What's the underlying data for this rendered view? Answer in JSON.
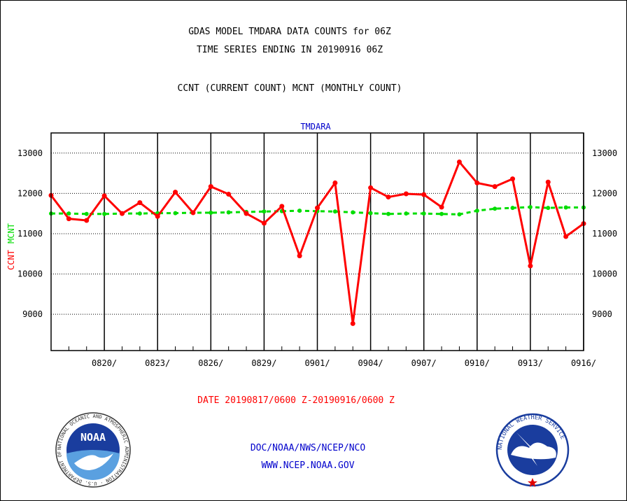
{
  "header": {
    "title_line1": "GDAS MODEL TMDARA DATA COUNTS for 06Z",
    "title_line2": "TIME SERIES ENDING IN 20190916 06Z",
    "subtitle": "CCNT (CURRENT COUNT) MCNT (MONTHLY COUNT)"
  },
  "footer": {
    "date_range": "DATE 20190817/0600 Z-20190916/0600 Z",
    "org": "DOC/NOAA/NWS/NCEP/NCO",
    "url": "WWW.NCEP.NOAA.GOV",
    "noaa_logo_label": "NOAA",
    "noaa_seal_text": "NATIONAL OCEANIC AND ATMOSPHERIC ADMINISTRATION · U.S. DEPARTMENT OF COMMERCE",
    "nws_seal_text": "NATIONAL WEATHER SERVICE"
  },
  "colors": {
    "ccnt": "#ff0000",
    "mcnt": "#00dd00",
    "plot_title": "#0000cc",
    "footer_blue": "#0000cc",
    "date_red": "#ff0000"
  },
  "chart_data": {
    "type": "line",
    "plot_title": "TMDARA",
    "ylabel_ccnt": "CCNT",
    "ylabel_mcnt": "MCNT",
    "x": [
      "0817",
      "0818",
      "0819",
      "0820",
      "0821",
      "0822",
      "0823",
      "0824",
      "0825",
      "0826",
      "0827",
      "0828",
      "0829",
      "0830",
      "0831",
      "0901",
      "0902",
      "0903",
      "0904",
      "0905",
      "0906",
      "0907",
      "0908",
      "0909",
      "0910",
      "0911",
      "0912",
      "0913",
      "0914",
      "0915",
      "0916"
    ],
    "xticklabels": [
      "0820/",
      "0823/",
      "0826/",
      "0829/",
      "0901/",
      "0904/",
      "0907/",
      "0910/",
      "0913/",
      "0916/"
    ],
    "xtick_dates": [
      "0820",
      "0823",
      "0826",
      "0829",
      "0901",
      "0904",
      "0907",
      "0910",
      "0913",
      "0916"
    ],
    "yticks": [
      9000,
      10000,
      11000,
      12000,
      13000
    ],
    "ylim": [
      8100,
      13500
    ],
    "grid": true,
    "series": [
      {
        "name": "CCNT",
        "values": [
          11950,
          11370,
          11330,
          11940,
          11500,
          11770,
          11430,
          12030,
          11520,
          12170,
          11980,
          11500,
          11260,
          11680,
          10450,
          11640,
          12260,
          8770,
          12140,
          11910,
          11990,
          11970,
          11660,
          12780,
          12260,
          12170,
          12360,
          10200,
          12280,
          10930,
          11250
        ]
      },
      {
        "name": "MCNT",
        "values": [
          11500,
          11500,
          11490,
          11490,
          11500,
          11500,
          11510,
          11510,
          11520,
          11520,
          11530,
          11540,
          11550,
          11560,
          11570,
          11560,
          11550,
          11530,
          11510,
          11490,
          11500,
          11500,
          11490,
          11480,
          11570,
          11620,
          11640,
          11660,
          11640,
          11650,
          11650
        ]
      }
    ]
  }
}
